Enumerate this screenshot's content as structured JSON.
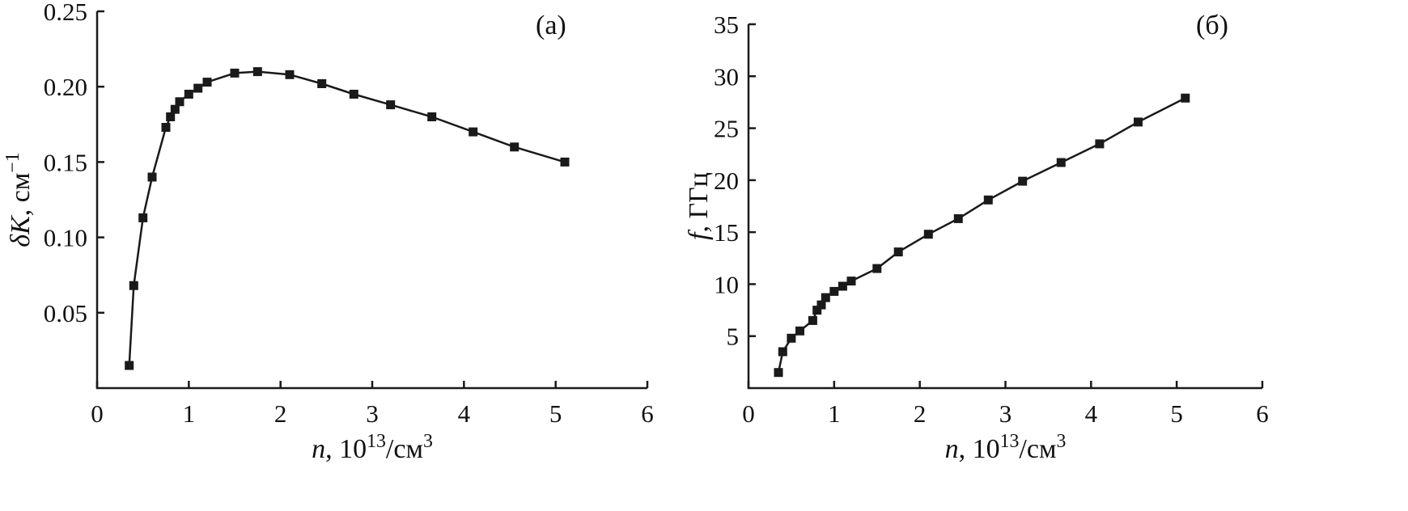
{
  "figure": {
    "background": "#ffffff",
    "ink_color": "#1a1a1a"
  },
  "chart_data": [
    {
      "id": "chart-a",
      "type": "line",
      "panel_label": "(а)",
      "title": "",
      "xlabel": "n, 10¹³/см³",
      "ylabel": "δK, см⁻¹",
      "xlabel_rich": [
        {
          "t": "n",
          "i": true
        },
        {
          "t": ", 10"
        },
        {
          "t": "13",
          "sup": true
        },
        {
          "t": "/см"
        },
        {
          "t": "3",
          "sup": true
        }
      ],
      "ylabel_rich": [
        {
          "t": "δK",
          "i": true
        },
        {
          "t": ", см"
        },
        {
          "t": "−1",
          "sup": true
        }
      ],
      "xlim": [
        0,
        6
      ],
      "ylim": [
        0,
        0.25
      ],
      "xticks": [
        0,
        1,
        2,
        3,
        4,
        5,
        6
      ],
      "xtick_labels": [
        "0",
        "1",
        "2",
        "3",
        "4",
        "5",
        "6"
      ],
      "yticks": [
        0.05,
        0.1,
        0.15,
        0.2,
        0.25
      ],
      "ytick_labels": [
        "0.05",
        "0.10",
        "0.15",
        "0.20",
        "0.25"
      ],
      "grid": false,
      "legend": null,
      "marker": "square",
      "marker_size": 11,
      "line_color": "#1a1a1a",
      "x": [
        0.35,
        0.4,
        0.5,
        0.6,
        0.75,
        0.8,
        0.85,
        0.9,
        1.0,
        1.1,
        1.2,
        1.5,
        1.75,
        2.1,
        2.45,
        2.8,
        3.2,
        3.65,
        4.1,
        4.55,
        5.1
      ],
      "y": [
        0.015,
        0.068,
        0.113,
        0.14,
        0.173,
        0.18,
        0.185,
        0.19,
        0.195,
        0.199,
        0.203,
        0.209,
        0.21,
        0.208,
        0.202,
        0.195,
        0.188,
        0.18,
        0.17,
        0.16,
        0.15
      ]
    },
    {
      "id": "chart-b",
      "type": "line",
      "panel_label": "(б)",
      "title": "",
      "xlabel": "n, 10¹³/см³",
      "ylabel": "f, ГГц",
      "xlabel_rich": [
        {
          "t": "n",
          "i": true
        },
        {
          "t": ", 10"
        },
        {
          "t": "13",
          "sup": true
        },
        {
          "t": "/см"
        },
        {
          "t": "3",
          "sup": true
        }
      ],
      "ylabel_rich": [
        {
          "t": "f",
          "i": true
        },
        {
          "t": ", ГГц"
        }
      ],
      "xlim": [
        0,
        6
      ],
      "ylim": [
        0,
        35
      ],
      "xticks": [
        0,
        1,
        2,
        3,
        4,
        5,
        6
      ],
      "xtick_labels": [
        "0",
        "1",
        "2",
        "3",
        "4",
        "5",
        "6"
      ],
      "yticks": [
        5,
        10,
        15,
        20,
        25,
        30,
        35
      ],
      "ytick_labels": [
        "5",
        "10",
        "15",
        "20",
        "25",
        "30",
        "35"
      ],
      "grid": false,
      "legend": null,
      "marker": "square",
      "marker_size": 11,
      "line_color": "#1a1a1a",
      "x": [
        0.35,
        0.4,
        0.5,
        0.6,
        0.75,
        0.8,
        0.85,
        0.9,
        1.0,
        1.1,
        1.2,
        1.5,
        1.75,
        2.1,
        2.45,
        2.8,
        3.2,
        3.65,
        4.1,
        4.55,
        5.1
      ],
      "y": [
        1.5,
        3.5,
        4.8,
        5.5,
        6.5,
        7.5,
        8.0,
        8.7,
        9.3,
        9.8,
        10.3,
        11.5,
        13.1,
        14.8,
        16.3,
        18.1,
        19.9,
        21.7,
        23.5,
        25.6,
        27.9
      ]
    }
  ]
}
